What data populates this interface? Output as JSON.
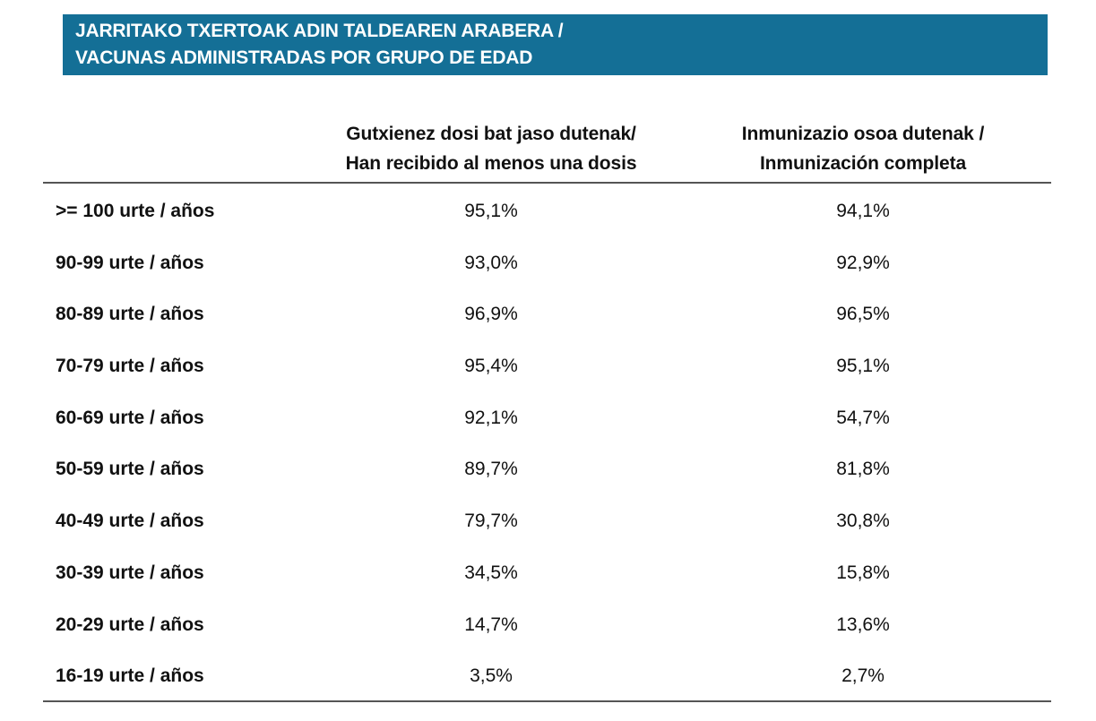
{
  "banner": {
    "line1": "JARRITAKO TXERTOAK ADIN TALDEAREN ARABERA /",
    "line2": "VACUNAS ADMINISTRADAS POR GRUPO DE EDAD",
    "color": "#146f96"
  },
  "table": {
    "columns": [
      {
        "line1": "Gutxienez dosi bat jaso dutenak/",
        "line2": "Han recibido al menos una dosis"
      },
      {
        "line1": "Inmunizazio osoa dutenak /",
        "line2": "Inmunización completa"
      }
    ],
    "rows": [
      {
        "label": ">= 100 urte / años",
        "one_dose": "95,1%",
        "complete": "94,1%"
      },
      {
        "label": "90-99 urte / años",
        "one_dose": "93,0%",
        "complete": "92,9%"
      },
      {
        "label": "80-89 urte / años",
        "one_dose": "96,9%",
        "complete": "96,5%"
      },
      {
        "label": "70-79 urte / años",
        "one_dose": "95,4%",
        "complete": "95,1%"
      },
      {
        "label": "60-69 urte / años",
        "one_dose": "92,1%",
        "complete": "54,7%"
      },
      {
        "label": "50-59 urte / años",
        "one_dose": "89,7%",
        "complete": "81,8%"
      },
      {
        "label": "40-49 urte / años",
        "one_dose": "79,7%",
        "complete": "30,8%"
      },
      {
        "label": "30-39 urte / años",
        "one_dose": "34,5%",
        "complete": "15,8%"
      },
      {
        "label": "20-29 urte / años",
        "one_dose": "14,7%",
        "complete": "13,6%"
      },
      {
        "label": "16-19 urte / años",
        "one_dose": "3,5%",
        "complete": "2,7%"
      }
    ]
  }
}
